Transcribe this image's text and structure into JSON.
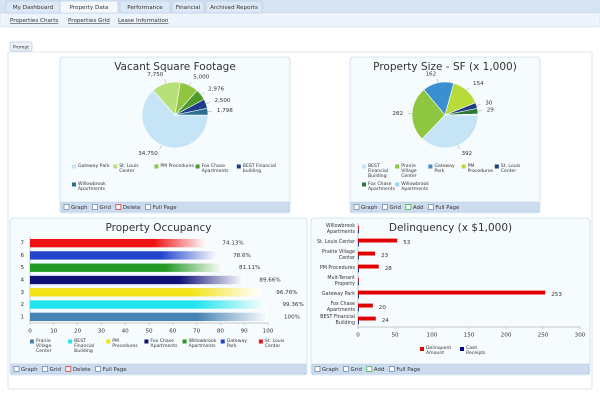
{
  "nav": {
    "tabs": [
      "My Dashboard",
      "Property Data",
      "Performance",
      "Financial",
      "Archived Reports"
    ],
    "active": 1,
    "subnav": [
      "Properties Charts",
      "Properties Grid",
      "Lease Information"
    ]
  },
  "prompt": "Prompt",
  "chart_data": [
    {
      "type": "pie",
      "title": "Vacant Square Footage",
      "categories": [
        "Gateway Park",
        "St. Louis Center",
        "PM Procedures",
        "Fox Chase Apartments",
        "BEST Financial building",
        "Willowbrook Apartments"
      ],
      "values": [
        34750,
        7750,
        5000,
        2976,
        2500,
        1798
      ],
      "value_labels": [
        "34,750",
        "7,750",
        "5,000",
        "2,976",
        "2,500",
        "1,798"
      ],
      "colors": [
        "#c5e5f6",
        "#b9df7a",
        "#8ec63f",
        "#4f9a2a",
        "#1f3c88",
        "#2a6f8f"
      ],
      "toolbar": [
        "Graph",
        "Grid",
        "Delete",
        "Full Page"
      ]
    },
    {
      "type": "pie",
      "title": "Property Size - SF (x 1,000)",
      "categories": [
        "BEST Financial Building",
        "Prairie Village Center",
        "Gateway Park",
        "PM Procedures",
        "St. Louis Center",
        "Fox Chase Apartments",
        "Willowbrook Apartments"
      ],
      "values": [
        392,
        282,
        162,
        154,
        30,
        29,
        5
      ],
      "value_labels": [
        "392",
        "282",
        "162",
        "154",
        "30",
        "29",
        null
      ],
      "colors": [
        "#c5e5f6",
        "#8ec63f",
        "#3b8fd1",
        "#b8da3a",
        "#1f3c88",
        "#2b7a3a",
        "#9fd3ef"
      ],
      "toolbar": [
        "Graph",
        "Grid",
        "Add",
        "Full Page"
      ]
    },
    {
      "type": "bar",
      "orientation": "horizontal",
      "title": "Property Occupancy",
      "categories": [
        "7",
        "6",
        "5",
        "4",
        "3",
        "2",
        "1"
      ],
      "values": [
        74.13,
        78.6,
        81.11,
        89.66,
        96.76,
        99.36,
        100
      ],
      "value_labels": [
        "74.13%",
        "78.6%",
        "81.11%",
        "89.66%",
        "96.76%",
        "99.36%",
        "100%"
      ],
      "colors": [
        "#ee1111",
        "#2244cc",
        "#229922",
        "#111177",
        "#f2e21a",
        "#22e4ee",
        "#4682b4"
      ],
      "legend": [
        "Prairie Village Center",
        "BEST Financial Building",
        "PM Procedures",
        "Fox Chase Apartments",
        "Willowbrook Apartments",
        "Gateway Park",
        "St. Louis Center"
      ],
      "legend_colors": [
        "#4682b4",
        "#22e4ee",
        "#f2e21a",
        "#111177",
        "#229922",
        "#2244cc",
        "#ee1111"
      ],
      "xlim": [
        0,
        100
      ],
      "xticks": [
        0,
        10,
        20,
        30,
        40,
        50,
        60,
        70,
        80,
        90,
        100
      ],
      "grid": false,
      "toolbar": [
        "Graph",
        "Grid",
        "Delete",
        "Full Page"
      ]
    },
    {
      "type": "bar",
      "orientation": "horizontal",
      "title": "Delinquency (x $1,000)",
      "categories": [
        "Willowbrook Apartments",
        "St. Louis Center",
        "Prairie Village Center",
        "PM Procedures",
        "Mult-Tenant Property",
        "Gateway Park",
        "Fox Chase Apartments",
        "BEST Financial Building"
      ],
      "series": [
        {
          "name": "Delinquent Amount",
          "color": "#e00000",
          "values": [
            0,
            53,
            23,
            28,
            0,
            253,
            20,
            24
          ],
          "value_labels": [
            null,
            "53",
            "23",
            "28",
            null,
            "253",
            "20",
            "24"
          ]
        },
        {
          "name": "Cash Receipts",
          "color": "#000088",
          "values": [
            0,
            0,
            0,
            0,
            0,
            0,
            0,
            0
          ]
        }
      ],
      "xlim": [
        0,
        300
      ],
      "xticks": [
        0,
        50,
        100,
        150,
        200,
        250,
        300
      ],
      "grid": false,
      "toolbar": [
        "Graph",
        "Grid",
        "Add",
        "Full Page"
      ]
    }
  ]
}
